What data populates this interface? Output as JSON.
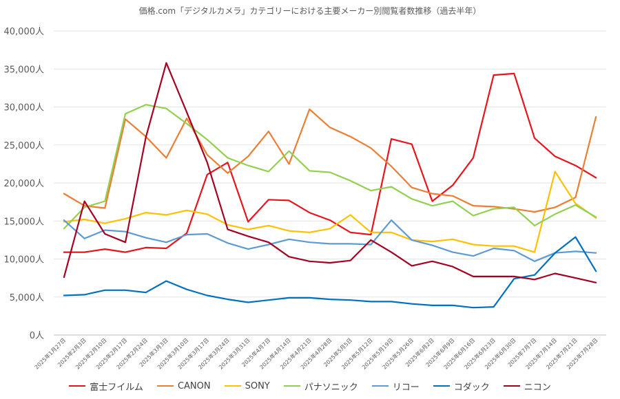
{
  "chart_data": {
    "type": "line",
    "title": "価格.com「デジタルカメラ」カテゴリーにおける主要メーカー別閲覧者数推移（過去半年）",
    "xlabel": "",
    "ylabel": "",
    "ylim": [
      0,
      40000
    ],
    "y_ticks": [
      0,
      5000,
      10000,
      15000,
      20000,
      25000,
      30000,
      35000,
      40000
    ],
    "y_tick_labels": [
      "0人",
      "5,000人",
      "10,000人",
      "15,000人",
      "20,000人",
      "25,000人",
      "30,000人",
      "35,000人",
      "40,000人"
    ],
    "grid": true,
    "legend_position": "bottom",
    "categories": [
      "2025年1月27日",
      "2025年2月3日",
      "2025年2月10日",
      "2025年2月17日",
      "2025年2月24日",
      "2025年3月3日",
      "2025年3月10日",
      "2025年3月17日",
      "2025年3月24日",
      "2025年3月31日",
      "2025年4月7日",
      "2025年4月14日",
      "2025年4月21日",
      "2025年4月28日",
      "2025年5月5日",
      "2025年5月12日",
      "2025年5月19日",
      "2025年5月26日",
      "2025年6月2日",
      "2025年6月9日",
      "2025年6月16日",
      "2025年6月23日",
      "2025年6月30日",
      "2025年7月7日",
      "2025年7月14日",
      "2025年7月21日",
      "2025年7月28日"
    ],
    "series": [
      {
        "name": "富士フイルム",
        "color": "#e8141b",
        "values": [
          10900,
          10900,
          11300,
          10900,
          11500,
          11400,
          13400,
          21100,
          22700,
          14900,
          17800,
          17700,
          16100,
          15100,
          13500,
          13200,
          25800,
          25100,
          17600,
          19700,
          23300,
          34200,
          34400,
          25900,
          23500,
          22300,
          20700
        ]
      },
      {
        "name": "CANON",
        "color": "#ed7d31",
        "values": [
          18600,
          17000,
          16700,
          28400,
          26100,
          23300,
          28500,
          23700,
          21300,
          23500,
          26800,
          22500,
          29700,
          27300,
          26100,
          24600,
          22200,
          19400,
          18600,
          18300,
          17000,
          16900,
          16600,
          16200,
          16800,
          18100,
          28700
        ]
      },
      {
        "name": "SONY",
        "color": "#ffc000",
        "values": [
          14900,
          15200,
          14700,
          15300,
          16100,
          15800,
          16400,
          15900,
          14500,
          13900,
          14400,
          13700,
          13500,
          14000,
          15800,
          13500,
          13500,
          12500,
          12300,
          12600,
          11900,
          11700,
          11700,
          10900,
          21500,
          17300,
          15400
        ]
      },
      {
        "name": "パナソニック",
        "color": "#92d050",
        "values": [
          14000,
          16800,
          17600,
          29100,
          30300,
          29800,
          27800,
          25700,
          23300,
          22300,
          21500,
          24200,
          21600,
          21400,
          20300,
          19000,
          19500,
          17900,
          17000,
          17600,
          15700,
          16600,
          16800,
          14400,
          15900,
          17100,
          15500
        ]
      },
      {
        "name": "リコー",
        "color": "#5b9bd5",
        "values": [
          15100,
          12700,
          13800,
          13600,
          12800,
          12200,
          13200,
          13300,
          12100,
          11300,
          11900,
          12600,
          12200,
          12000,
          12000,
          11900,
          15100,
          12500,
          11800,
          10900,
          10400,
          11400,
          11100,
          9700,
          10800,
          11000,
          10800
        ]
      },
      {
        "name": "コダック",
        "color": "#0070c0",
        "values": [
          5200,
          5300,
          5900,
          5900,
          5600,
          7100,
          6000,
          5200,
          4700,
          4300,
          4600,
          4900,
          4900,
          4700,
          4600,
          4400,
          4400,
          4100,
          3900,
          3900,
          3600,
          3700,
          7400,
          7900,
          10800,
          12900,
          8400
        ]
      },
      {
        "name": "ニコン",
        "color": "#a50021",
        "values": [
          7600,
          17600,
          13300,
          12200,
          26000,
          35800,
          29300,
          22700,
          13900,
          13000,
          12200,
          10300,
          9700,
          9500,
          9800,
          12500,
          10900,
          9100,
          9700,
          9000,
          7700,
          7700,
          7700,
          7300,
          8100,
          7500,
          6900
        ]
      }
    ]
  }
}
